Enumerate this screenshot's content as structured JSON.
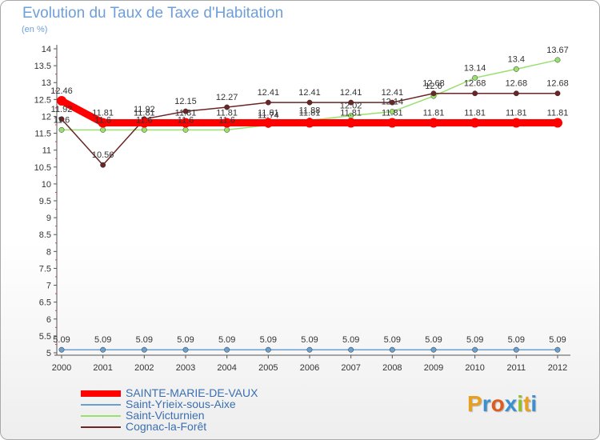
{
  "header": {
    "title": "Evolution du Taux de Taxe d'Habitation",
    "subtitle": "(en %)"
  },
  "chart_data": {
    "type": "line",
    "title": "Evolution du Taux de Taxe d'Habitation",
    "ylabel": "(en %)",
    "x": [
      "2000",
      "2001",
      "2002",
      "2003",
      "2004",
      "2005",
      "2006",
      "2007",
      "2008",
      "2009",
      "2010",
      "2011",
      "2012"
    ],
    "ylim": [
      5,
      14
    ],
    "yticks": [
      "5",
      "5.5",
      "6",
      "6.5",
      "7",
      "7.5",
      "8",
      "8.5",
      "9",
      "9.5",
      "10",
      "10.5",
      "11",
      "11.5",
      "12",
      "12.5",
      "13",
      "13.5",
      "14"
    ],
    "grid": false,
    "legend_position": "bottom-left",
    "series": [
      {
        "name": "SAINTE-MARIE-DE-VAUX",
        "color": "#ff0000",
        "values": [
          12.46,
          11.81,
          11.81,
          11.81,
          11.81,
          11.81,
          11.81,
          11.81,
          11.81,
          11.81,
          11.81,
          11.81,
          11.81
        ],
        "labels": [
          "12.46",
          "11.81",
          "11.81",
          "11.81",
          "11.81",
          "11.81",
          "11.81",
          "11.81",
          "11.81",
          "11.81",
          "11.81",
          "11.81",
          "11.81"
        ]
      },
      {
        "name": "Saint-Yrieix-sous-Aixe",
        "color": "#6a9fd0",
        "values": [
          5.09,
          5.09,
          5.09,
          5.09,
          5.09,
          5.09,
          5.09,
          5.09,
          5.09,
          5.09,
          5.09,
          5.09,
          5.09
        ],
        "labels": [
          "5.09",
          "5.09",
          "5.09",
          "5.09",
          "5.09",
          "5.09",
          "5.09",
          "5.09",
          "5.09",
          "5.09",
          "5.09",
          "5.09",
          "5.09"
        ]
      },
      {
        "name": "Saint-Victurnien",
        "color": "#99e070",
        "values": [
          11.6,
          11.6,
          11.6,
          11.6,
          11.6,
          11.74,
          11.88,
          12.02,
          12.14,
          12.6,
          13.14,
          13.4,
          13.67
        ],
        "labels": [
          "11.6",
          "11.6",
          "11.6",
          "11.6",
          "11.6",
          "11.74",
          "11.88",
          "12.02",
          "12.14",
          "12.6",
          "13.14",
          "13.4",
          "13.67"
        ]
      },
      {
        "name": "Cognac-la-Forêt",
        "color": "#6b2525",
        "values": [
          11.92,
          10.56,
          11.92,
          12.15,
          12.27,
          12.41,
          12.41,
          12.41,
          12.41,
          12.68,
          12.68,
          12.68,
          12.68
        ],
        "labels": [
          "11.92",
          "10.56",
          "11.92",
          "12.15",
          "12.27",
          "12.41",
          "12.41",
          "12.41",
          "12.41",
          "12.68",
          "12.68",
          "12.68",
          "12.68"
        ]
      }
    ]
  },
  "logo": {
    "letters": [
      "P",
      "r",
      "o",
      "x",
      "i",
      "t",
      "i"
    ],
    "colors": [
      "#e8a020",
      "#3a8fd0",
      "#e05a20",
      "#3a8fd0",
      "#90c030",
      "#e8a020",
      "#3a8fd0"
    ]
  }
}
